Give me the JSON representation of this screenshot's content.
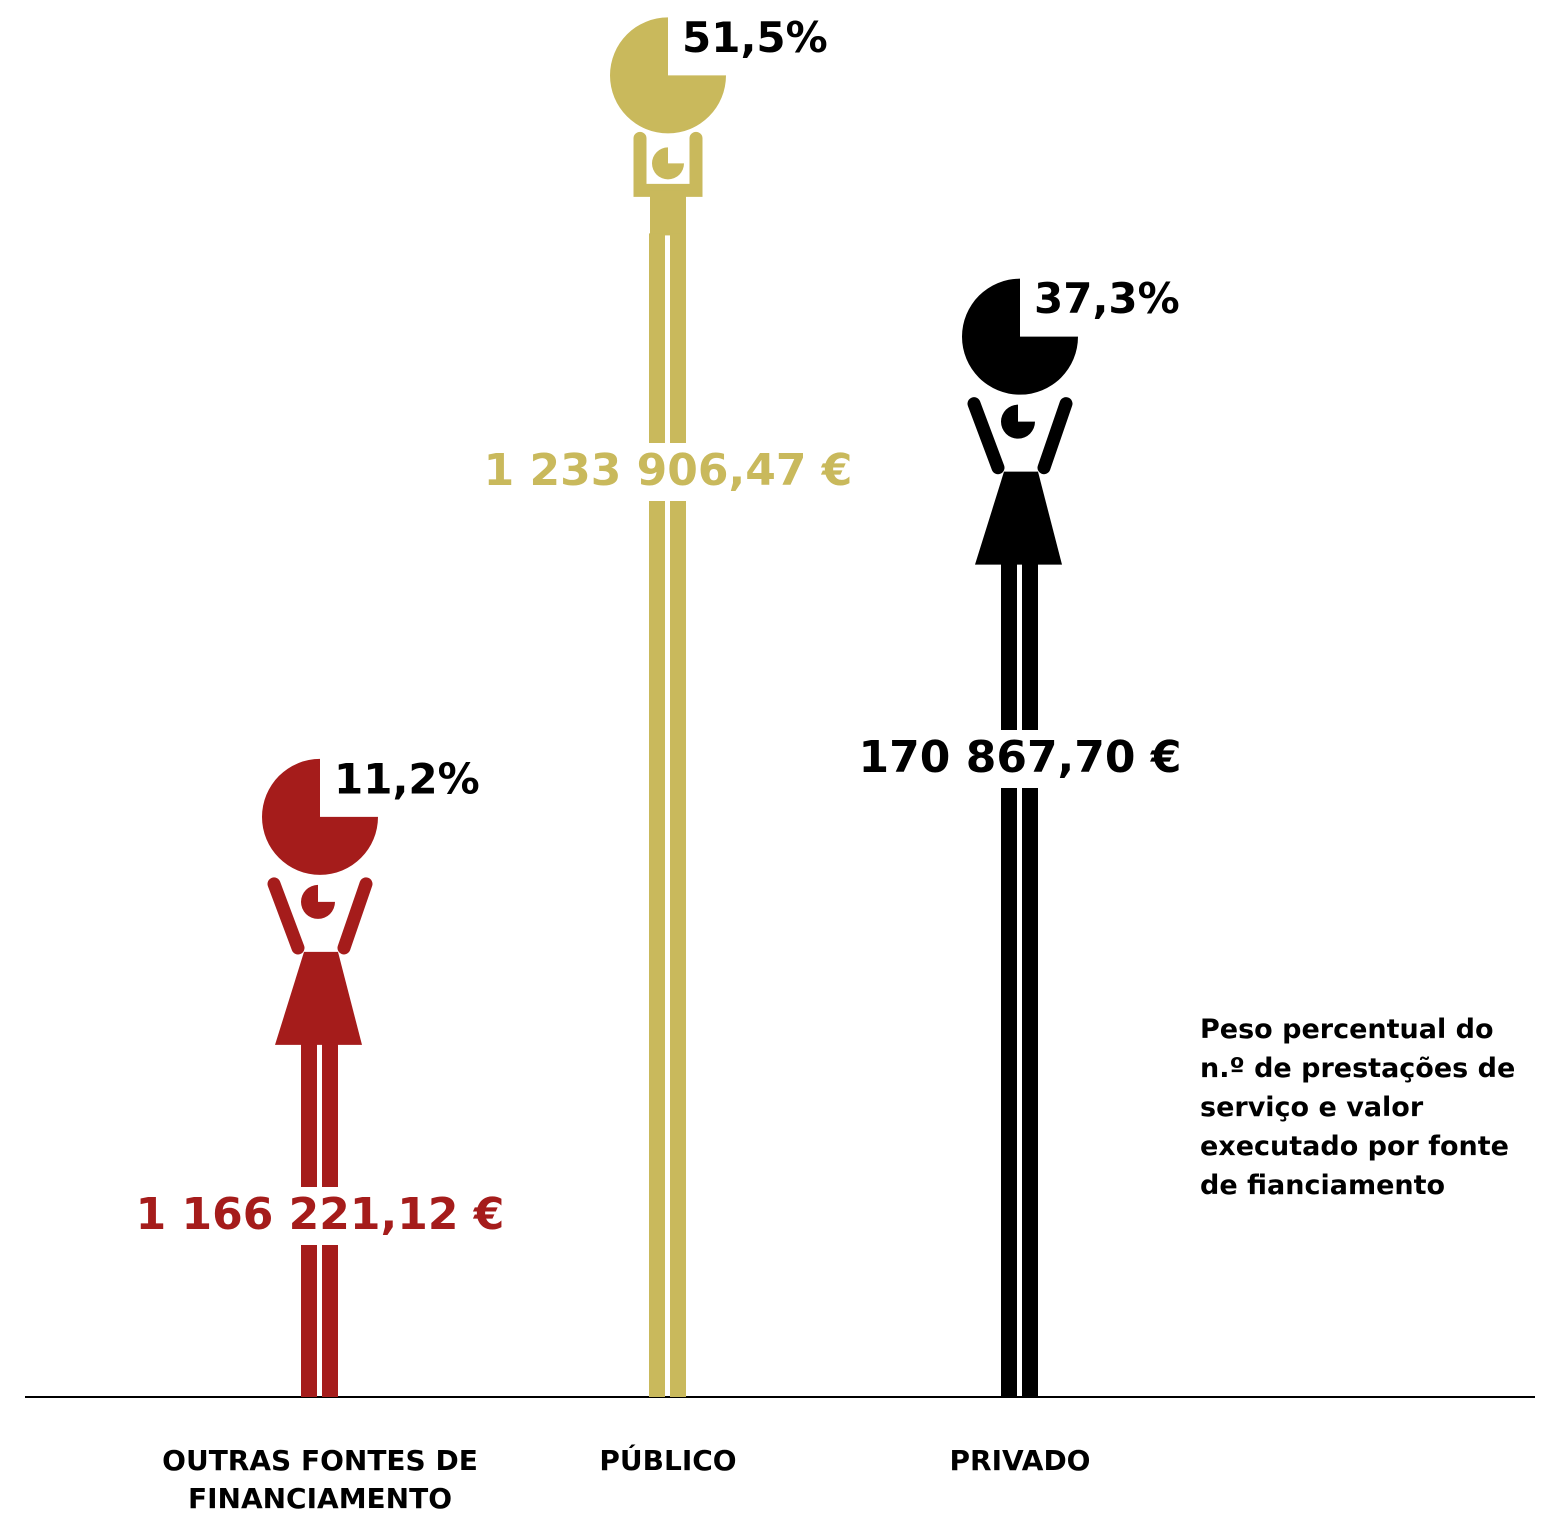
{
  "chart_data": {
    "type": "pictogram",
    "note": "Peso percentual do n.º de prestações de serviço e valor executado por fonte de fianciamento",
    "categories": [
      "OUTRAS FONTES DE FINANCIAMENTO",
      "PÚBLICO",
      "PRIVADO"
    ],
    "values": [
      11.2,
      51.5,
      37.3
    ],
    "value_labels": [
      "11,2%",
      "51,5%",
      "37,3%"
    ],
    "amounts": [
      1166221.12,
      1233906.47,
      170867.7
    ],
    "amount_labels": [
      "1 166 221,12 €",
      "1 233 906,47 €",
      "170 867,70 €"
    ],
    "colors": [
      "#a51c1b",
      "#c9b95c",
      "#000000"
    ]
  }
}
